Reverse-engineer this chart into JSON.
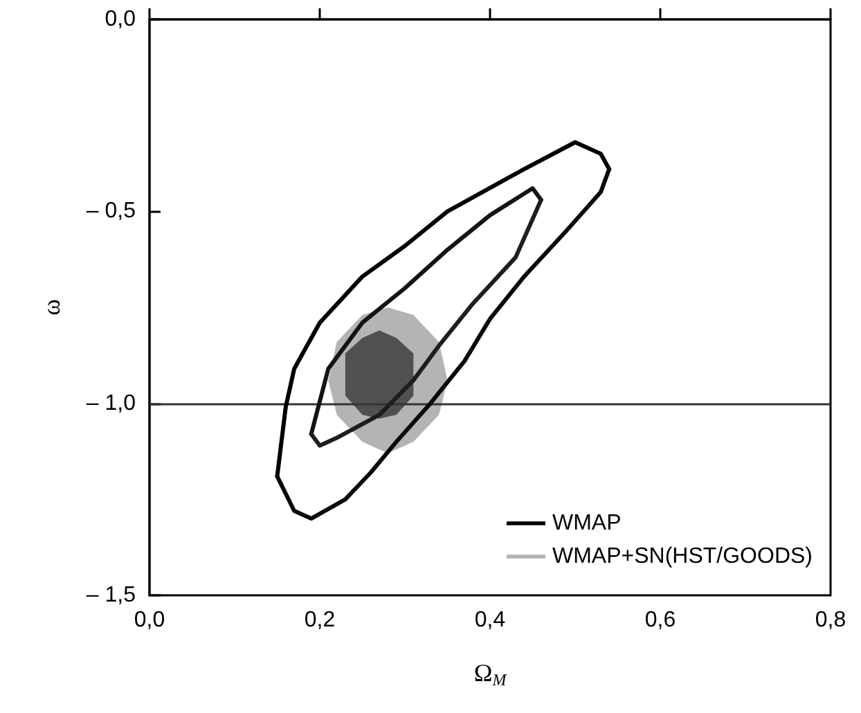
{
  "chart_data": {
    "type": "line",
    "xlabel": "Ω$_{M}$",
    "ylabel": "ω",
    "xlim": [
      0,
      0.8
    ],
    "xticks": [
      {
        "value": 0,
        "label": "0,0"
      },
      {
        "value": 0.2,
        "label": "0,2"
      },
      {
        "value": 0.4,
        "label": "0,4"
      },
      {
        "value": 0.6,
        "label": "0,6"
      },
      {
        "value": 0.8,
        "label": "0,8"
      }
    ],
    "ylim": [
      -1.5,
      0
    ],
    "yticks": [
      {
        "value": -1.5,
        "label": "– 1,5"
      },
      {
        "value": -1,
        "label": "– 1,0"
      },
      {
        "value": -0.5,
        "label": "– 0,5"
      },
      {
        "value": 0,
        "label": "0,0"
      }
    ],
    "grid": false,
    "legend": "bottom right",
    "marker": "none",
    "line_style": "solid",
    "ref_lines": [
      {
        "axis": "y",
        "value": -1,
        "color": "#333333"
      }
    ],
    "series": [
      {
        "name": "WMAP",
        "color": "#000000",
        "x": [
          0.15,
          0.16,
          0.17,
          0.2,
          0.25,
          0.3,
          0.35,
          0.44,
          0.5,
          0.53,
          0.54
        ],
        "values": [
          -1.19,
          -1.01,
          -0.91,
          -0.79,
          -0.67,
          -0.59,
          -0.5,
          -0.39,
          -0.32,
          -0.35,
          -0.39
        ]
      },
      {
        "color": "#0a0a0a",
        "x": [
          0.15,
          0.17,
          0.19,
          0.23,
          0.26,
          0.29,
          0.33,
          0.37,
          0.4,
          0.44,
          0.49,
          0.53,
          0.54
        ],
        "values": [
          -1.19,
          -1.28,
          -1.3,
          -1.25,
          -1.18,
          -1.1,
          -1.0,
          -0.89,
          -0.78,
          -0.67,
          -0.55,
          -0.45,
          -0.39
        ]
      },
      {
        "color": "#141414",
        "x": [
          0.19,
          0.21,
          0.25,
          0.3,
          0.35,
          0.4,
          0.45,
          0.46
        ],
        "values": [
          -1.08,
          -0.91,
          -0.79,
          -0.7,
          -0.6,
          -0.51,
          -0.44,
          -0.47
        ]
      },
      {
        "color": "#1e1e1e",
        "x": [
          0.19,
          0.2,
          0.22,
          0.27,
          0.31,
          0.34,
          0.38,
          0.43,
          0.46
        ],
        "values": [
          -1.08,
          -1.11,
          -1.09,
          -1.03,
          -0.94,
          -0.85,
          -0.74,
          -0.62,
          -0.47
        ]
      },
      {
        "type": "area",
        "name": "WMAP+SN(HST/GOODS)",
        "color": "#b4b4b4",
        "x": [
          0.35,
          0.34,
          0.31,
          0.28,
          0.25,
          0.22,
          0.21,
          0.22,
          0.25,
          0.28,
          0.31,
          0.34
        ],
        "values": [
          -0.94,
          -0.84,
          -0.77,
          -0.75,
          -0.77,
          -0.84,
          -0.94,
          -1.03,
          -1.1,
          -1.13,
          -1.1,
          -1.03
        ]
      },
      {
        "type": "area",
        "color": "#505050",
        "x": [
          0.31,
          0.31,
          0.29,
          0.27,
          0.25,
          0.23,
          0.23,
          0.23,
          0.25,
          0.27,
          0.29,
          0.31
        ],
        "values": [
          -0.93,
          -0.87,
          -0.83,
          -0.81,
          -0.83,
          -0.87,
          -0.93,
          -0.98,
          -1.03,
          -1.04,
          -1.03,
          -0.98
        ]
      }
    ]
  }
}
